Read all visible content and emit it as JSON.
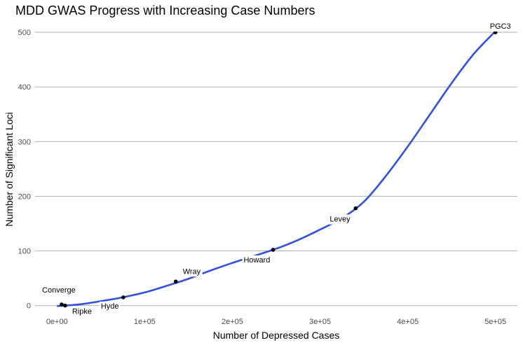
{
  "chart_data": {
    "type": "scatter",
    "title": "MDD GWAS Progress with Increasing Case Numbers",
    "xlabel": "Number of Depressed Cases",
    "ylabel": "Number of Significant Loci",
    "xlim": [
      -25000,
      525000
    ],
    "ylim": [
      -12,
      513
    ],
    "x_ticks": [
      0,
      100000,
      200000,
      300000,
      400000,
      500000
    ],
    "x_tick_labels": [
      "0e+00",
      "1e+05",
      "2e+05",
      "3e+05",
      "4e+05",
      "5e+05"
    ],
    "y_ticks": [
      0,
      100,
      200,
      300,
      400,
      500
    ],
    "y_tick_labels": [
      "0",
      "100",
      "200",
      "300",
      "400",
      "500"
    ],
    "grid": true,
    "points": [
      {
        "label": "Converge",
        "x": 5303,
        "y": 2
      },
      {
        "label": "Ripke",
        "x": 9240,
        "y": 0
      },
      {
        "label": "Hyde",
        "x": 75607,
        "y": 15
      },
      {
        "label": "Wray",
        "x": 135458,
        "y": 44
      },
      {
        "label": "Howard",
        "x": 246363,
        "y": 102
      },
      {
        "label": "Levey",
        "x": 340591,
        "y": 178
      },
      {
        "label": "PGC3",
        "x": 500000,
        "y": 500
      }
    ],
    "trend_line": {
      "type": "smooth",
      "color": "#3050e0",
      "x": [
        0,
        25000,
        50000,
        75000,
        100000,
        125000,
        150000,
        175000,
        200000,
        225000,
        250000,
        275000,
        300000,
        325000,
        350000,
        375000,
        400000,
        425000,
        450000,
        475000,
        500000
      ],
      "y": [
        -1,
        2,
        8,
        15,
        24,
        36,
        49,
        64,
        78,
        91,
        104,
        120,
        139,
        160,
        190,
        237,
        291,
        349,
        407,
        460,
        502
      ]
    },
    "point_color": "#000000"
  }
}
